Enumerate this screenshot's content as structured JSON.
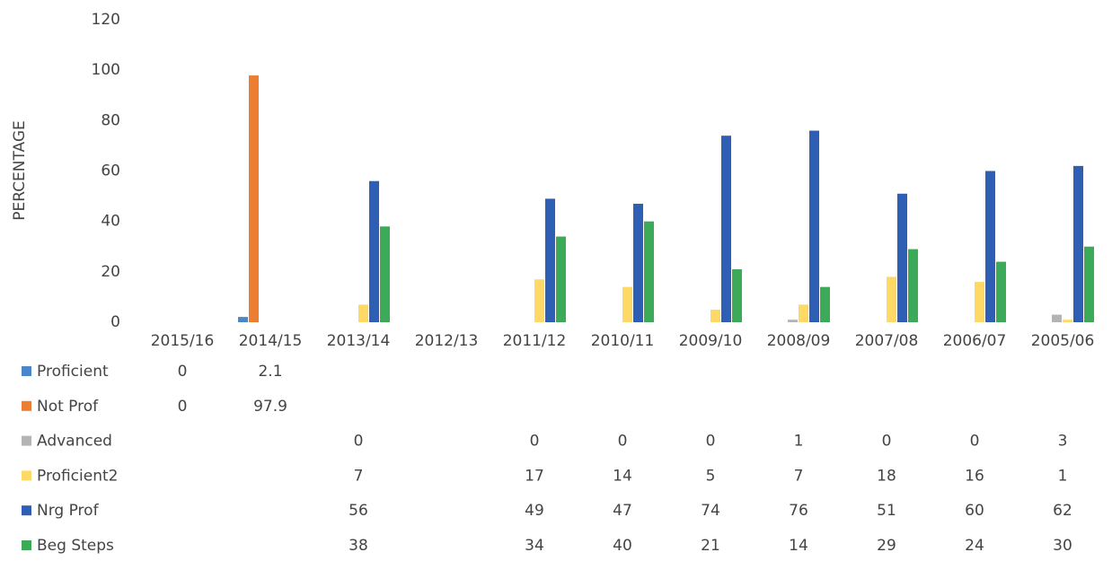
{
  "chart_data": {
    "type": "bar",
    "y_label": "PERCENTAGE",
    "categories": [
      "2015/16",
      "2014/15",
      "2013/14",
      "2012/13",
      "2011/12",
      "2010/11",
      "2009/10",
      "2008/09",
      "2007/08",
      "2006/07",
      "2005/06"
    ],
    "series": [
      {
        "name": "Proficient",
        "color": "#4a86c8",
        "values": [
          0,
          2.1,
          null,
          null,
          null,
          null,
          null,
          null,
          null,
          null,
          null
        ]
      },
      {
        "name": "Not Prof",
        "color": "#ed7d31",
        "values": [
          0,
          97.9,
          null,
          null,
          null,
          null,
          null,
          null,
          null,
          null,
          null
        ]
      },
      {
        "name": "Advanced",
        "color": "#b4b4b4",
        "values": [
          null,
          null,
          0,
          null,
          0,
          0,
          0,
          1,
          0,
          0,
          3
        ]
      },
      {
        "name": "Proficient2",
        "color": "#ffd966",
        "values": [
          null,
          null,
          7,
          null,
          17,
          14,
          5,
          7,
          18,
          16,
          1
        ]
      },
      {
        "name": "Nrg Prof",
        "color": "#2e5fb5",
        "values": [
          null,
          null,
          56,
          null,
          49,
          47,
          74,
          76,
          51,
          60,
          62
        ]
      },
      {
        "name": "Beg Steps",
        "color": "#3daa5a",
        "values": [
          null,
          null,
          38,
          null,
          34,
          40,
          21,
          14,
          29,
          24,
          30
        ]
      }
    ],
    "ylim": [
      0,
      120
    ],
    "yticks": [
      0,
      20,
      40,
      60,
      80,
      100,
      120
    ],
    "grid": false
  }
}
